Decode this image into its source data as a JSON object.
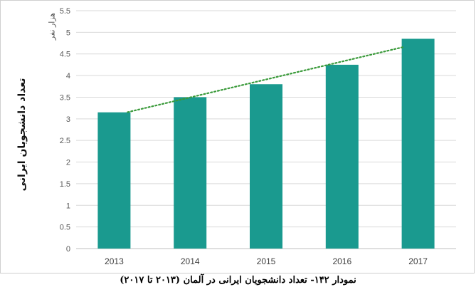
{
  "chart_data": {
    "type": "bar",
    "title": "",
    "categories": [
      "2013",
      "2014",
      "2015",
      "2016",
      "2017"
    ],
    "values": [
      3.15,
      3.5,
      3.8,
      4.25,
      4.85
    ],
    "ylabel": "تعداد دانشجویان ایرانی",
    "yunit": "هزار نفر",
    "xlabel": "",
    "ylim": [
      0,
      5.5
    ],
    "yticks": [
      "0",
      "0.5",
      "1",
      "1.5",
      "2",
      "2.5",
      "3",
      "3.5",
      "4",
      "4.5",
      "5",
      "5.5"
    ],
    "grid": true,
    "trendline": {
      "type": "linear",
      "style": "dotted",
      "color": "#3a9a3a"
    },
    "bar_color": "#1a9a8f",
    "grid_color": "#d9d9d9"
  },
  "caption": "نمودار ۱۴۲- تعداد دانشجویان ایرانی در آلمان (۲۰۱۳ تا ۲۰۱۷)"
}
